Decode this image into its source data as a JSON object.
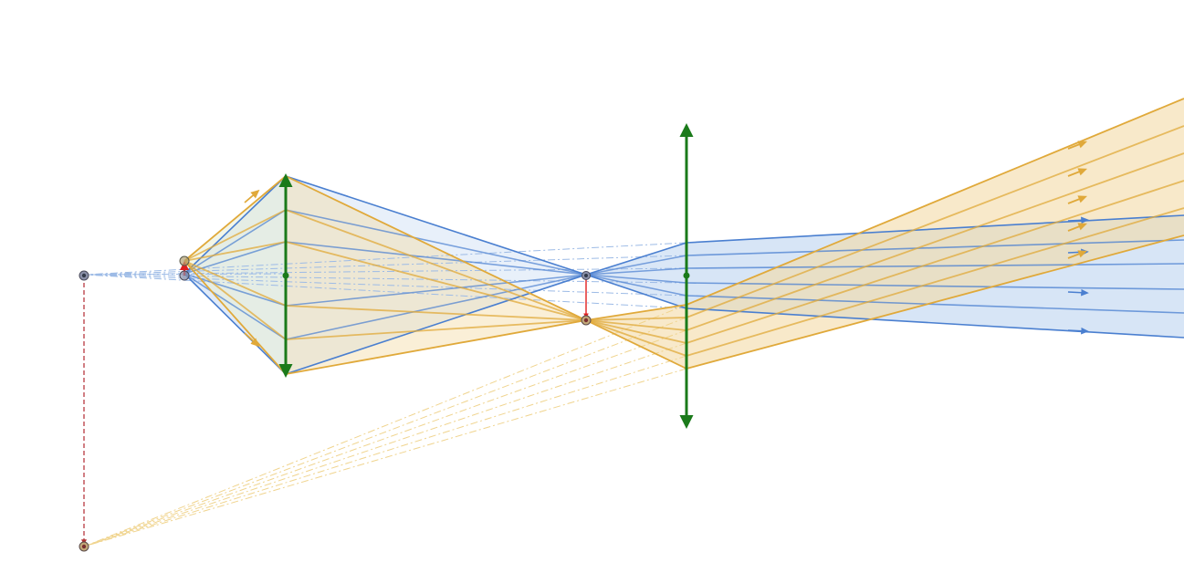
{
  "canvas": {
    "background": "#ffffff"
  },
  "colors": {
    "blue_ray": "#4a7fd0",
    "blue_fill": "#bcd3f0",
    "orange_ray": "#e0a93a",
    "orange_fill": "#f3dba6",
    "lens": "#1a7a1a",
    "object_arrow": "#e02020",
    "virtual_arrow": "#c2545a",
    "point": "#4a4a5a"
  },
  "icons": {
    "lens": "double-arrow-lens-icon",
    "object": "red-arrow-icon",
    "point": "dot-point-icon"
  }
}
